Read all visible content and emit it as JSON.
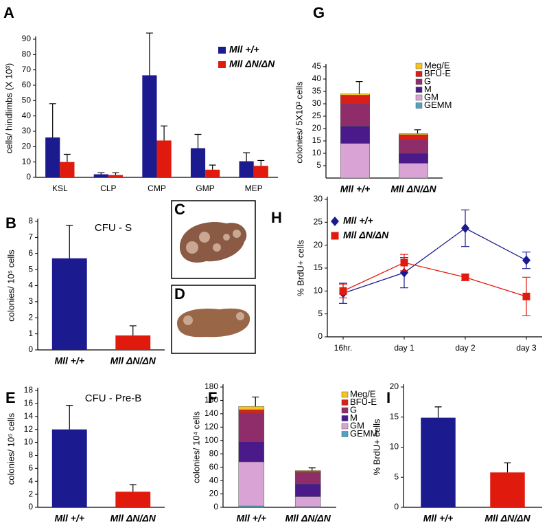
{
  "chart_data": [
    {
      "panel": "A",
      "type": "bar",
      "ylabel": "cells/ hindlimbs (X 10³)",
      "categories": [
        "KSL",
        "CLP",
        "CMP",
        "GMP",
        "MEP"
      ],
      "series": [
        {
          "name": "Mll +/+",
          "color": "#1b1b8f",
          "values": [
            26,
            2,
            66.5,
            19,
            10.5
          ],
          "errors": [
            22,
            1,
            27.5,
            9,
            5.5
          ]
        },
        {
          "name": "Mll ΔN/ΔN",
          "color": "#e01b0e",
          "values": [
            10,
            1.5,
            24,
            5,
            7.5
          ],
          "errors": [
            5,
            1.5,
            9.5,
            3,
            3.5
          ]
        }
      ],
      "ylim": [
        0,
        90
      ],
      "yticks": [
        0,
        10,
        20,
        30,
        40,
        50,
        60,
        70,
        80,
        90
      ]
    },
    {
      "panel": "B",
      "type": "bar",
      "title": "CFU - S",
      "ylabel": "colonies/ 10⁵ cells",
      "categories": [
        "Mll +/+",
        "Mll ΔN/ΔN"
      ],
      "values": [
        5.7,
        0.9
      ],
      "errors": [
        2.05,
        0.6
      ],
      "colors": [
        "#1b1b8f",
        "#e01b0e"
      ],
      "ylim": [
        0,
        8
      ],
      "yticks": [
        0,
        1,
        2,
        3,
        4,
        5,
        6,
        7,
        8
      ]
    },
    {
      "panel": "E",
      "type": "bar",
      "title": "CFU - Pre-B",
      "ylabel": "colonies/ 10⁵ cells",
      "categories": [
        "Mll +/+",
        "Mll ΔN/ΔN"
      ],
      "values": [
        12,
        2.4
      ],
      "errors": [
        3.7,
        1.1
      ],
      "colors": [
        "#1b1b8f",
        "#e01b0e"
      ],
      "ylim": [
        0,
        18
      ],
      "yticks": [
        0,
        2,
        4,
        6,
        8,
        10,
        12,
        14,
        16,
        18
      ]
    },
    {
      "panel": "F",
      "type": "stacked-bar",
      "ylabel": "colonies/ 10⁴ cells",
      "categories": [
        "Mll +/+",
        "Mll ΔN/ΔN"
      ],
      "series": [
        {
          "name": "GEMM",
          "color": "#4fa3c7",
          "values": [
            2,
            1
          ]
        },
        {
          "name": "GM",
          "color": "#d9a3d6",
          "values": [
            66,
            15
          ]
        },
        {
          "name": "M",
          "color": "#4a1a8a",
          "values": [
            30,
            19
          ]
        },
        {
          "name": "G",
          "color": "#8e2d6a",
          "values": [
            43,
            17
          ]
        },
        {
          "name": "BFU-E",
          "color": "#d91f17",
          "values": [
            5,
            2
          ]
        },
        {
          "name": "Meg/E",
          "color": "#f4c51f",
          "values": [
            5,
            1
          ]
        }
      ],
      "errors": [
        14,
        4
      ],
      "ylim": [
        0,
        180
      ],
      "yticks": [
        0,
        20,
        40,
        60,
        80,
        100,
        120,
        140,
        160,
        180
      ]
    },
    {
      "panel": "G",
      "type": "stacked-bar",
      "ylabel": "colonies/ 5X10³ cells",
      "categories": [
        "Mll +/+",
        "Mll ΔN/ΔN"
      ],
      "series": [
        {
          "name": "GEMM",
          "color": "#4fa3c7",
          "values": [
            0,
            0
          ]
        },
        {
          "name": "GM",
          "color": "#d9a3d6",
          "values": [
            14,
            6
          ]
        },
        {
          "name": "M",
          "color": "#4a1a8a",
          "values": [
            7,
            4
          ]
        },
        {
          "name": "G",
          "color": "#8e2d6a",
          "values": [
            9,
            5.5
          ]
        },
        {
          "name": "BFU-E",
          "color": "#d91f17",
          "values": [
            3.5,
            2
          ]
        },
        {
          "name": "Meg/E",
          "color": "#f4c51f",
          "values": [
            0.5,
            0.5
          ]
        }
      ],
      "errors": [
        5,
        1.5
      ],
      "ylim": [
        0,
        45
      ],
      "yticks": [
        5,
        10,
        15,
        20,
        25,
        30,
        35,
        40,
        45
      ]
    },
    {
      "panel": "H",
      "type": "line",
      "ylabel": "% BrdU+ cells",
      "categories": [
        "16hr.",
        "day 1",
        "day 2",
        "day 3"
      ],
      "series": [
        {
          "name": "Mll +/+",
          "color": "#1b1b8f",
          "marker": "diamond",
          "values": [
            9.5,
            14,
            23.7,
            16.7
          ],
          "errors": [
            2.2,
            3.3,
            4,
            1.8
          ]
        },
        {
          "name": "Mll ΔN/ΔN",
          "color": "#e01b0e",
          "marker": "square",
          "values": [
            10,
            16.2,
            13,
            8.8
          ],
          "errors": [
            1.5,
            1.8,
            0.7,
            4.2
          ]
        }
      ],
      "ylim": [
        0,
        30
      ],
      "yticks": [
        0,
        5,
        10,
        15,
        20,
        25,
        30
      ]
    },
    {
      "panel": "I",
      "type": "bar",
      "ylabel": "% BrdU+ cells",
      "categories": [
        "Mll +/+",
        "Mll ΔN/ΔN"
      ],
      "values": [
        14.9,
        5.8
      ],
      "errors": [
        1.8,
        1.6
      ],
      "colors": [
        "#1b1b8f",
        "#e01b0e"
      ],
      "ylim": [
        0,
        20
      ],
      "yticks": [
        0,
        5,
        10,
        15,
        20
      ]
    }
  ],
  "images": [
    {
      "panel": "C"
    },
    {
      "panel": "D"
    }
  ]
}
